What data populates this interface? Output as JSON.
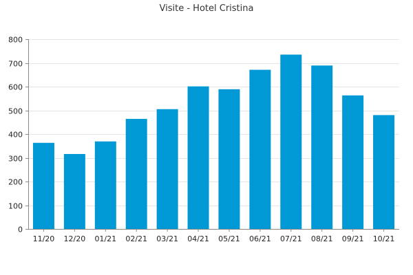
{
  "chart_data": {
    "type": "bar",
    "title": "Visite - Hotel Cristina",
    "xlabel": "",
    "ylabel": "",
    "categories": [
      "11/20",
      "12/20",
      "01/21",
      "02/21",
      "03/21",
      "04/21",
      "05/21",
      "06/21",
      "07/21",
      "08/21",
      "09/21",
      "10/21"
    ],
    "values": [
      363,
      316,
      369,
      464,
      505,
      601,
      589,
      671,
      735,
      689,
      563,
      480
    ],
    "ylim": [
      0,
      800
    ],
    "yticks": [
      0,
      100,
      200,
      300,
      400,
      500,
      600,
      700,
      800
    ],
    "grid": true,
    "legend": "none",
    "bar_color": "#0099d6"
  }
}
